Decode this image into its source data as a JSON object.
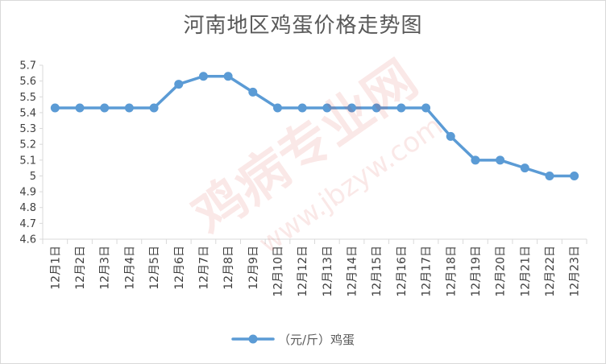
{
  "chart_data": {
    "type": "line",
    "title": "河南地区鸡蛋价格走势图",
    "categories": [
      "12月1日",
      "12月2日",
      "12月3日",
      "12月4日",
      "12月5日",
      "12月6日",
      "12月7日",
      "12月8日",
      "12月9日",
      "12月10日",
      "12月12日",
      "12月13日",
      "12月14日",
      "12月15日",
      "12月16日",
      "12月17日",
      "12月18日",
      "12月19日",
      "12月20日",
      "12月21日",
      "12月22日",
      "12月23日"
    ],
    "series": [
      {
        "name": "（元/斤）鸡蛋",
        "color": "#5b9bd5",
        "values": [
          5.43,
          5.43,
          5.43,
          5.43,
          5.43,
          5.58,
          5.63,
          5.63,
          5.53,
          5.43,
          5.43,
          5.43,
          5.43,
          5.43,
          5.43,
          5.43,
          5.25,
          5.1,
          5.1,
          5.05,
          5.0,
          5.0
        ]
      }
    ],
    "ylim": [
      4.6,
      5.7
    ],
    "yticks": [
      "4.6",
      "4.7",
      "4.8",
      "4.9",
      "5",
      "5.1",
      "5.2",
      "5.3",
      "5.4",
      "5.5",
      "5.6",
      "5.7"
    ],
    "grid": false,
    "legend_position": "bottom"
  },
  "watermark": {
    "brand": "鸡病专业网",
    "url": "www.jbzyw.com"
  }
}
